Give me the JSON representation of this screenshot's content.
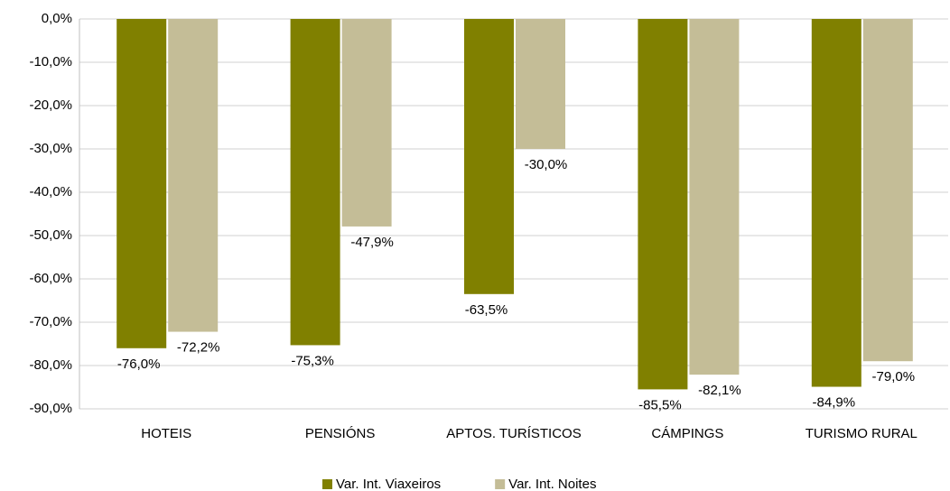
{
  "chart_data": {
    "type": "bar",
    "categories": [
      "HOTEIS",
      "PENSIÓNS",
      "APTOS. TURÍSTICOS",
      "CÁMPINGS",
      "TURISMO RURAL"
    ],
    "series": [
      {
        "name": "Var. Int. Viaxeiros",
        "color": "#808000",
        "values": [
          -76.0,
          -75.3,
          -63.5,
          -85.5,
          -84.9
        ],
        "value_labels": [
          "-76,0%",
          "-75,3%",
          "-63,5%",
          "-85,5%",
          "-84,9%"
        ]
      },
      {
        "name": "Var. Int. Noites",
        "color": "#c4bd97",
        "values": [
          -72.2,
          -47.9,
          -30.0,
          -82.1,
          -79.0
        ],
        "value_labels": [
          "-72,2%",
          "-47,9%",
          "-30,0%",
          "-82,1%",
          "-79,0%"
        ]
      }
    ],
    "ylim": [
      -90,
      0
    ],
    "yticks": [
      {
        "value": 0,
        "label": "0,0%"
      },
      {
        "value": -10,
        "label": "-10,0%"
      },
      {
        "value": -20,
        "label": "-20,0%"
      },
      {
        "value": -30,
        "label": "-30,0%"
      },
      {
        "value": -40,
        "label": "-40,0%"
      },
      {
        "value": -50,
        "label": "-50,0%"
      },
      {
        "value": -60,
        "label": "-60,0%"
      },
      {
        "value": -70,
        "label": "-70,0%"
      },
      {
        "value": -80,
        "label": "-80,0%"
      },
      {
        "value": -90,
        "label": "-90,0%"
      }
    ],
    "grid": true,
    "legend": "bottom"
  }
}
